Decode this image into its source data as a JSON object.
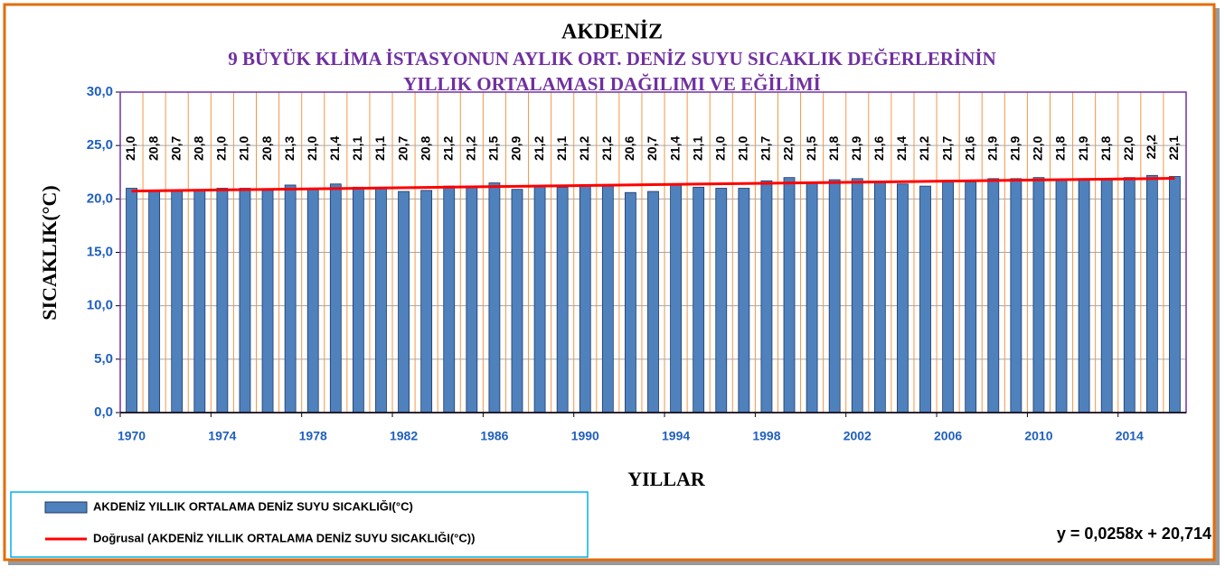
{
  "chart_data": {
    "type": "bar",
    "title": "AKDENİZ",
    "subtitle": [
      "9 BÜYÜK KLİMA İSTASYONUN AYLIK ORT. DENİZ SUYU SICAKLIK DEĞERLERİNİN",
      "YILLIK  ORTALAMASI DAĞILIMI VE EĞİLİMİ"
    ],
    "x_label": "YILLAR",
    "y_label": "SICAKLIK(°C)",
    "categories": [
      "1970",
      null,
      null,
      null,
      "1974",
      null,
      null,
      null,
      "1978",
      null,
      null,
      null,
      "1982",
      null,
      null,
      null,
      "1986",
      null,
      null,
      null,
      "1990",
      null,
      null,
      null,
      "1994",
      null,
      null,
      null,
      "1998",
      null,
      null,
      null,
      "2002",
      null,
      null,
      null,
      "2006",
      null,
      null,
      null,
      "2010",
      null,
      null,
      null,
      "2014",
      null,
      null
    ],
    "series": [
      {
        "name": "AKDENİZ  YILLIK ORTALAMA DENİZ SUYU SICAKLIĞI(°C)",
        "color": "#4f81bd",
        "values": [
          21.0,
          20.8,
          20.7,
          20.8,
          21.0,
          21.0,
          20.8,
          21.3,
          21.0,
          21.4,
          21.1,
          21.1,
          20.7,
          20.8,
          21.2,
          21.2,
          21.5,
          20.9,
          21.2,
          21.1,
          21.2,
          21.2,
          20.6,
          20.7,
          21.4,
          21.1,
          21.0,
          21.0,
          21.7,
          22.0,
          21.5,
          21.8,
          21.9,
          21.6,
          21.4,
          21.2,
          21.7,
          21.6,
          21.9,
          21.9,
          22.0,
          21.8,
          21.9,
          21.8,
          22.0,
          22.2,
          22.1
        ],
        "value_labels": [
          "21,0",
          "20,8",
          "20,7",
          "20,8",
          "21,0",
          "21,0",
          "20,8",
          "21,3",
          "21,0",
          "21,4",
          "21,1",
          "21,1",
          "20,7",
          "20,8",
          "21,2",
          "21,2",
          "21,5",
          "20,9",
          "21,2",
          "21,1",
          "21,2",
          "21,2",
          "20,6",
          "20,7",
          "21,4",
          "21,1",
          "21,0",
          "21,0",
          "21,7",
          "22,0",
          "21,5",
          "21,8",
          "21,9",
          "21,6",
          "21,4",
          "21,2",
          "21,7",
          "21,6",
          "21,9",
          "21,9",
          "22,0",
          "21,8",
          "21,9",
          "21,8",
          "22,0",
          "22,2",
          "22,1"
        ]
      }
    ],
    "trendline": {
      "name": "Doğrusal (AKDENİZ  YILLIK ORTALAMA DENİZ SUYU SICAKLIĞI(°C))",
      "color": "#ff0000",
      "equation": "y = 0,0258x + 20,714",
      "values": [
        20.74,
        21.93
      ]
    },
    "ylim": [
      0,
      30
    ],
    "yticks": [
      {
        "value": 0,
        "label": "0,0"
      },
      {
        "value": 5,
        "label": "5,0"
      },
      {
        "value": 10,
        "label": "10,0"
      },
      {
        "value": 15,
        "label": "15,0"
      },
      {
        "value": 20,
        "label": "20,0"
      },
      {
        "value": 25,
        "label": "25,0"
      },
      {
        "value": 30,
        "label": "30,0"
      }
    ],
    "grid": true
  }
}
